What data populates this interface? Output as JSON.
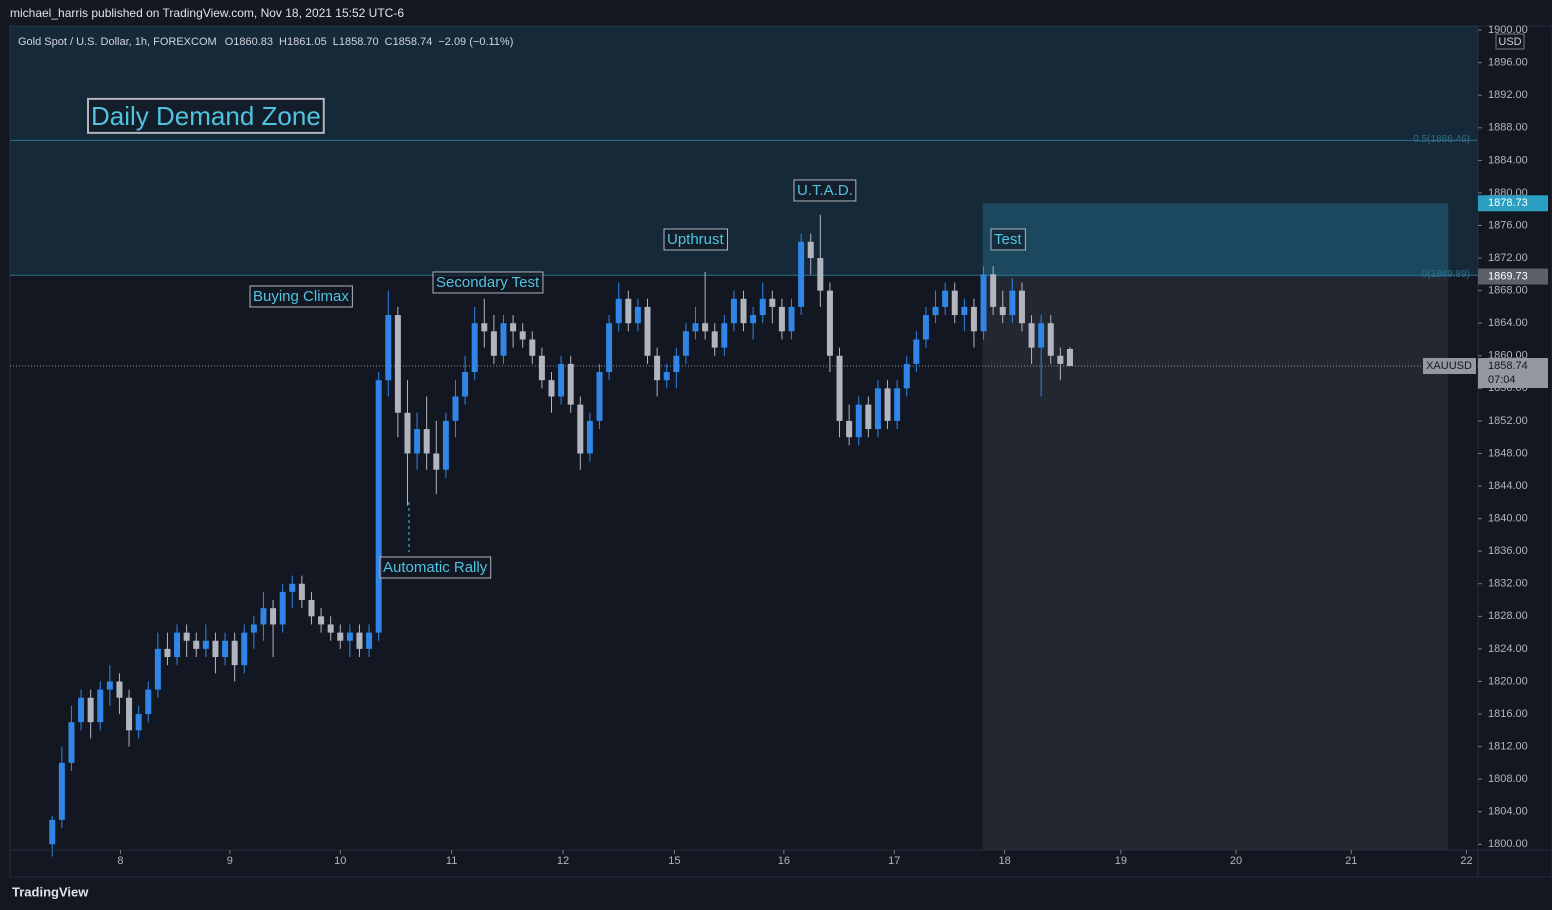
{
  "header": {
    "published": "michael_harris published on TradingView.com, Nov 18, 2021 15:52 UTC-6",
    "symbol": "Gold Spot / U.S. Dollar, 1h, FOREXCOM",
    "ohlc": [
      "O1860.83",
      "H1861.05",
      "L1858.70",
      "C1858.74",
      "−2.09 (−0.11%)"
    ]
  },
  "footer": "TradingView",
  "chart_data": {
    "type": "candlestick",
    "currency": "USD",
    "up_color": "#2f86e6",
    "down_color": "#b2b5be",
    "ylim": [
      1799.3,
      1900.5
    ],
    "xlim": [
      -4.4,
      148.5
    ],
    "yticks": [
      {
        "value": 1800,
        "label": "1800.00"
      },
      {
        "value": 1804,
        "label": "1804.00"
      },
      {
        "value": 1808,
        "label": "1808.00"
      },
      {
        "value": 1812,
        "label": "1812.00"
      },
      {
        "value": 1816,
        "label": "1816.00"
      },
      {
        "value": 1820,
        "label": "1820.00"
      },
      {
        "value": 1824,
        "label": "1824.00"
      },
      {
        "value": 1828,
        "label": "1828.00"
      },
      {
        "value": 1832,
        "label": "1832.00"
      },
      {
        "value": 1836,
        "label": "1836.00"
      },
      {
        "value": 1840,
        "label": "1840.00"
      },
      {
        "value": 1844,
        "label": "1844.00"
      },
      {
        "value": 1848,
        "label": "1848.00"
      },
      {
        "value": 1852,
        "label": "1852.00"
      },
      {
        "value": 1856,
        "label": "1856.00"
      },
      {
        "value": 1860,
        "label": "1860.00"
      },
      {
        "value": 1864,
        "label": "1864.00"
      },
      {
        "value": 1868,
        "label": "1868.00"
      },
      {
        "value": 1872,
        "label": "1872.00"
      },
      {
        "value": 1876,
        "label": "1876.00"
      },
      {
        "value": 1880,
        "label": "1880.00"
      },
      {
        "value": 1884,
        "label": "1884.00"
      },
      {
        "value": 1888,
        "label": "1888.00"
      },
      {
        "value": 1892,
        "label": "1892.00"
      },
      {
        "value": 1896,
        "label": "1896.00"
      },
      {
        "value": 1900,
        "label": "1900.00"
      }
    ],
    "xticks": [
      {
        "value": 7.1,
        "label": "8"
      },
      {
        "value": 18.5,
        "label": "9"
      },
      {
        "value": 30.0,
        "label": "10"
      },
      {
        "value": 41.6,
        "label": "11"
      },
      {
        "value": 53.2,
        "label": "12"
      },
      {
        "value": 64.8,
        "label": "15"
      },
      {
        "value": 76.2,
        "label": "16"
      },
      {
        "value": 87.7,
        "label": "17"
      },
      {
        "value": 99.2,
        "label": "18"
      },
      {
        "value": 111.3,
        "label": "19"
      },
      {
        "value": 123.3,
        "label": "20"
      },
      {
        "value": 135.3,
        "label": "21"
      },
      {
        "value": 147.3,
        "label": "22"
      }
    ],
    "fib": [
      {
        "value": 1886.46,
        "label": "0.5(1886.46)"
      },
      {
        "value": 1869.89,
        "label": "0(1869.89)"
      }
    ],
    "position": {
      "x": [
        96.9,
        145.4
      ],
      "target": 1878.73,
      "entry": 1869.73
    },
    "last_price": {
      "symbol": "XAUUSD",
      "value": 1858.74,
      "countdown": "07:04"
    },
    "annotations": [
      "Daily Demand Zone",
      "Buying Climax",
      "Secondary Test",
      "Upthrust",
      "U.T.A.D.",
      "Test",
      "Automatic Rally"
    ],
    "candles": [
      [
        1800,
        1803.5,
        1798.5,
        1803
      ],
      [
        1803,
        1812,
        1802,
        1810
      ],
      [
        1810,
        1817,
        1809,
        1815
      ],
      [
        1815,
        1819,
        1814,
        1818
      ],
      [
        1818,
        1819,
        1813,
        1815
      ],
      [
        1815,
        1820,
        1814,
        1819
      ],
      [
        1819,
        1822,
        1817,
        1820
      ],
      [
        1820,
        1821,
        1816,
        1818
      ],
      [
        1818,
        1819,
        1812,
        1814
      ],
      [
        1814,
        1817,
        1813,
        1816
      ],
      [
        1816,
        1820,
        1815,
        1819
      ],
      [
        1819,
        1826,
        1818,
        1824
      ],
      [
        1824,
        1826,
        1822,
        1823
      ],
      [
        1823,
        1827,
        1822,
        1826
      ],
      [
        1826,
        1827,
        1823,
        1825
      ],
      [
        1825,
        1826,
        1823,
        1824
      ],
      [
        1824,
        1827,
        1823,
        1825
      ],
      [
        1825,
        1826,
        1821,
        1823
      ],
      [
        1823,
        1826,
        1822,
        1825
      ],
      [
        1825,
        1826,
        1820,
        1822
      ],
      [
        1822,
        1827,
        1821,
        1826
      ],
      [
        1826,
        1828,
        1824,
        1827
      ],
      [
        1827,
        1831,
        1825,
        1829
      ],
      [
        1829,
        1830,
        1823,
        1827
      ],
      [
        1827,
        1832,
        1826,
        1831
      ],
      [
        1831,
        1833,
        1829,
        1832
      ],
      [
        1832,
        1833,
        1829,
        1830
      ],
      [
        1830,
        1831,
        1827,
        1828
      ],
      [
        1828,
        1829,
        1826,
        1827
      ],
      [
        1827,
        1828,
        1825,
        1826
      ],
      [
        1826,
        1827,
        1824,
        1825
      ],
      [
        1825,
        1827,
        1823,
        1826
      ],
      [
        1826,
        1827,
        1823,
        1824
      ],
      [
        1824,
        1827,
        1823,
        1826
      ],
      [
        1826,
        1858,
        1825,
        1857
      ],
      [
        1857,
        1868,
        1855,
        1865
      ],
      [
        1865,
        1866,
        1850,
        1853
      ],
      [
        1853,
        1857,
        1841.6,
        1848
      ],
      [
        1848,
        1853,
        1846,
        1851
      ],
      [
        1851,
        1855,
        1846,
        1848
      ],
      [
        1848,
        1852,
        1843,
        1846
      ],
      [
        1846,
        1853,
        1845,
        1852
      ],
      [
        1852,
        1857,
        1850,
        1855
      ],
      [
        1855,
        1860,
        1854,
        1858
      ],
      [
        1858,
        1866,
        1857,
        1864
      ],
      [
        1864,
        1867,
        1861,
        1863
      ],
      [
        1863,
        1865,
        1859,
        1860
      ],
      [
        1860,
        1865,
        1859,
        1864
      ],
      [
        1864,
        1865,
        1861,
        1863
      ],
      [
        1863,
        1864,
        1861,
        1862
      ],
      [
        1862,
        1863,
        1859,
        1860
      ],
      [
        1860,
        1861,
        1856,
        1857
      ],
      [
        1857,
        1858,
        1853,
        1855
      ],
      [
        1855,
        1860,
        1854,
        1859
      ],
      [
        1859,
        1860,
        1853,
        1854
      ],
      [
        1854,
        1855,
        1846,
        1848
      ],
      [
        1848,
        1853,
        1847,
        1852
      ],
      [
        1852,
        1859,
        1851,
        1858
      ],
      [
        1858,
        1865,
        1857,
        1864
      ],
      [
        1864,
        1869,
        1863,
        1867
      ],
      [
        1867,
        1868,
        1863,
        1864
      ],
      [
        1864,
        1867,
        1863,
        1866
      ],
      [
        1866,
        1867,
        1859,
        1860
      ],
      [
        1860,
        1861,
        1855,
        1857
      ],
      [
        1857,
        1859,
        1856,
        1858
      ],
      [
        1858,
        1861,
        1856,
        1860
      ],
      [
        1860,
        1864,
        1859,
        1863
      ],
      [
        1863,
        1866,
        1862,
        1864
      ],
      [
        1864,
        1870.3,
        1862,
        1863
      ],
      [
        1863,
        1864,
        1860,
        1861
      ],
      [
        1861,
        1865,
        1860,
        1864
      ],
      [
        1864,
        1868,
        1863,
        1867
      ],
      [
        1867,
        1868,
        1863,
        1864
      ],
      [
        1864,
        1866,
        1862,
        1865
      ],
      [
        1865,
        1869,
        1864,
        1867
      ],
      [
        1867,
        1868,
        1864,
        1866
      ],
      [
        1866,
        1867,
        1862,
        1863
      ],
      [
        1863,
        1867,
        1862,
        1866
      ],
      [
        1866,
        1875,
        1865,
        1874
      ],
      [
        1874,
        1875,
        1870,
        1872
      ],
      [
        1872,
        1877.3,
        1866,
        1868
      ],
      [
        1868,
        1869,
        1858,
        1860
      ],
      [
        1860,
        1861,
        1850,
        1852
      ],
      [
        1852,
        1854,
        1849,
        1850
      ],
      [
        1850,
        1855,
        1849,
        1854
      ],
      [
        1854,
        1855,
        1850,
        1851
      ],
      [
        1851,
        1857,
        1850,
        1856
      ],
      [
        1856,
        1857,
        1851,
        1852
      ],
      [
        1852,
        1857,
        1851,
        1856
      ],
      [
        1856,
        1860,
        1855,
        1859
      ],
      [
        1859,
        1863,
        1858,
        1862
      ],
      [
        1862,
        1866,
        1861,
        1865
      ],
      [
        1865,
        1868,
        1864,
        1866
      ],
      [
        1866,
        1869,
        1865,
        1868
      ],
      [
        1868,
        1869,
        1864,
        1865
      ],
      [
        1865,
        1867,
        1863,
        1866
      ],
      [
        1866,
        1867,
        1861,
        1863
      ],
      [
        1863,
        1871,
        1862,
        1870
      ],
      [
        1870,
        1871,
        1865,
        1866
      ],
      [
        1866,
        1868,
        1864,
        1865
      ],
      [
        1865,
        1869.5,
        1864,
        1868
      ],
      [
        1868,
        1869,
        1863,
        1864
      ],
      [
        1864,
        1865,
        1859,
        1861
      ],
      [
        1861,
        1865,
        1855,
        1864
      ],
      [
        1864,
        1865,
        1859,
        1860
      ],
      [
        1860,
        1861,
        1857,
        1859
      ],
      [
        1860.83,
        1861.05,
        1858.7,
        1858.74
      ]
    ]
  }
}
